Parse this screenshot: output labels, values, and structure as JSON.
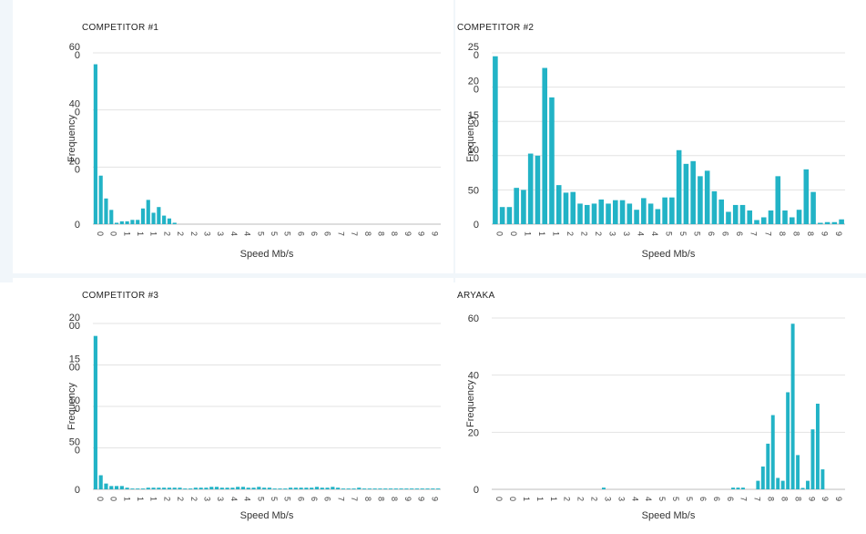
{
  "colors": {
    "bar": "#22b3c6",
    "panel_background": "#f1f6fa"
  },
  "chart_data": [
    {
      "type": "bar",
      "title": "COMPETITOR #1",
      "xlabel": "Speed Mb/s",
      "ylabel": "Frequency",
      "ytick_labels": [
        "0",
        "20\n0",
        "40\n0",
        "60\n0"
      ],
      "ylim": [
        0,
        60
      ],
      "xtick_labels": [
        "0",
        "0",
        "1",
        "1",
        "1",
        "2",
        "2",
        "2",
        "3",
        "3",
        "4",
        "4",
        "5",
        "5",
        "5",
        "6",
        "6",
        "6",
        "7",
        "7",
        "8",
        "8",
        "8",
        "9",
        "9",
        "9"
      ],
      "values": [
        56,
        17,
        9,
        5,
        0.5,
        1,
        1,
        1.5,
        1.5,
        5.5,
        8.5,
        4,
        6,
        3,
        2,
        0.5,
        0,
        0,
        0,
        0,
        0,
        0,
        0,
        0,
        0,
        0,
        0,
        0,
        0,
        0,
        0,
        0,
        0,
        0,
        0,
        0,
        0,
        0,
        0,
        0,
        0,
        0,
        0,
        0,
        0,
        0,
        0,
        0,
        0,
        0,
        0,
        0,
        0,
        0,
        0,
        0,
        0,
        0,
        0,
        0,
        0,
        0,
        0,
        0,
        0,
        0
      ]
    },
    {
      "type": "bar",
      "title": "COMPETITOR #2",
      "xlabel": "Speed Mb/s",
      "ylabel": "Frequency",
      "ytick_labels": [
        "0",
        "50",
        "10\n0",
        "15\n0",
        "20\n0",
        "25\n0"
      ],
      "ylim": [
        0,
        250
      ],
      "xtick_labels": [
        "0",
        "0",
        "1",
        "1",
        "1",
        "2",
        "2",
        "2",
        "3",
        "3",
        "4",
        "4",
        "5",
        "5",
        "5",
        "6",
        "6",
        "6",
        "7",
        "7",
        "8",
        "8",
        "8",
        "9",
        "9"
      ],
      "values": [
        245,
        25,
        25,
        53,
        50,
        103,
        100,
        228,
        185,
        57,
        46,
        47,
        30,
        28,
        30,
        36,
        30,
        35,
        35,
        30,
        21,
        38,
        30,
        22,
        39,
        39,
        108,
        88,
        92,
        70,
        78,
        48,
        36,
        18,
        28,
        28,
        20,
        6,
        10,
        20,
        70,
        20,
        10,
        21,
        80,
        47,
        2,
        3,
        3,
        7
      ]
    },
    {
      "type": "bar",
      "title": "COMPETITOR #3",
      "xlabel": "Speed Mb/s",
      "ylabel": "Frequency",
      "ytick_labels": [
        "0",
        "50\n0",
        "10\n0",
        "15\n00",
        "20\n00"
      ],
      "ylim": [
        0,
        2000
      ],
      "xtick_labels": [
        "0",
        "0",
        "1",
        "1",
        "1",
        "2",
        "2",
        "2",
        "3",
        "3",
        "4",
        "4",
        "5",
        "5",
        "5",
        "6",
        "6",
        "6",
        "7",
        "7",
        "8",
        "8",
        "8",
        "9",
        "9",
        "9"
      ],
      "values": [
        1850,
        170,
        70,
        40,
        40,
        40,
        20,
        10,
        10,
        10,
        20,
        20,
        20,
        20,
        20,
        20,
        20,
        10,
        10,
        20,
        20,
        20,
        30,
        30,
        20,
        20,
        20,
        30,
        30,
        20,
        20,
        30,
        20,
        20,
        10,
        10,
        10,
        20,
        20,
        20,
        20,
        20,
        30,
        20,
        20,
        30,
        20,
        10,
        10,
        10,
        20,
        10,
        10,
        10,
        10,
        10,
        10,
        10,
        10,
        10,
        10,
        10,
        10,
        10,
        10,
        10
      ]
    },
    {
      "type": "bar",
      "title": "ARYAKA",
      "xlabel": "Speed Mb/s",
      "ylabel": "Frequency",
      "ytick_labels": [
        "0",
        "20",
        "40",
        "60"
      ],
      "ylim": [
        0,
        60
      ],
      "xtick_labels": [
        "0",
        "0",
        "1",
        "1",
        "1",
        "2",
        "2",
        "2",
        "3",
        "3",
        "4",
        "4",
        "5",
        "5",
        "5",
        "6",
        "6",
        "6",
        "7",
        "7",
        "8",
        "8",
        "8",
        "9",
        "9",
        "9"
      ],
      "values": [
        0,
        0,
        0,
        0,
        0,
        0,
        0,
        0,
        0,
        0,
        0,
        0,
        0,
        0,
        0,
        0,
        0,
        0,
        0,
        0,
        0,
        0,
        0.6,
        0,
        0,
        0,
        0,
        0,
        0,
        0,
        0,
        0,
        0,
        0,
        0,
        0,
        0,
        0,
        0,
        0,
        0,
        0,
        0,
        0,
        0,
        0,
        0,
        0,
        0.6,
        0.6,
        0.6,
        0,
        0,
        3,
        8,
        16,
        26,
        4,
        3,
        34,
        58,
        12,
        0.5,
        3,
        21,
        30,
        7,
        0,
        0,
        0,
        0
      ]
    }
  ]
}
